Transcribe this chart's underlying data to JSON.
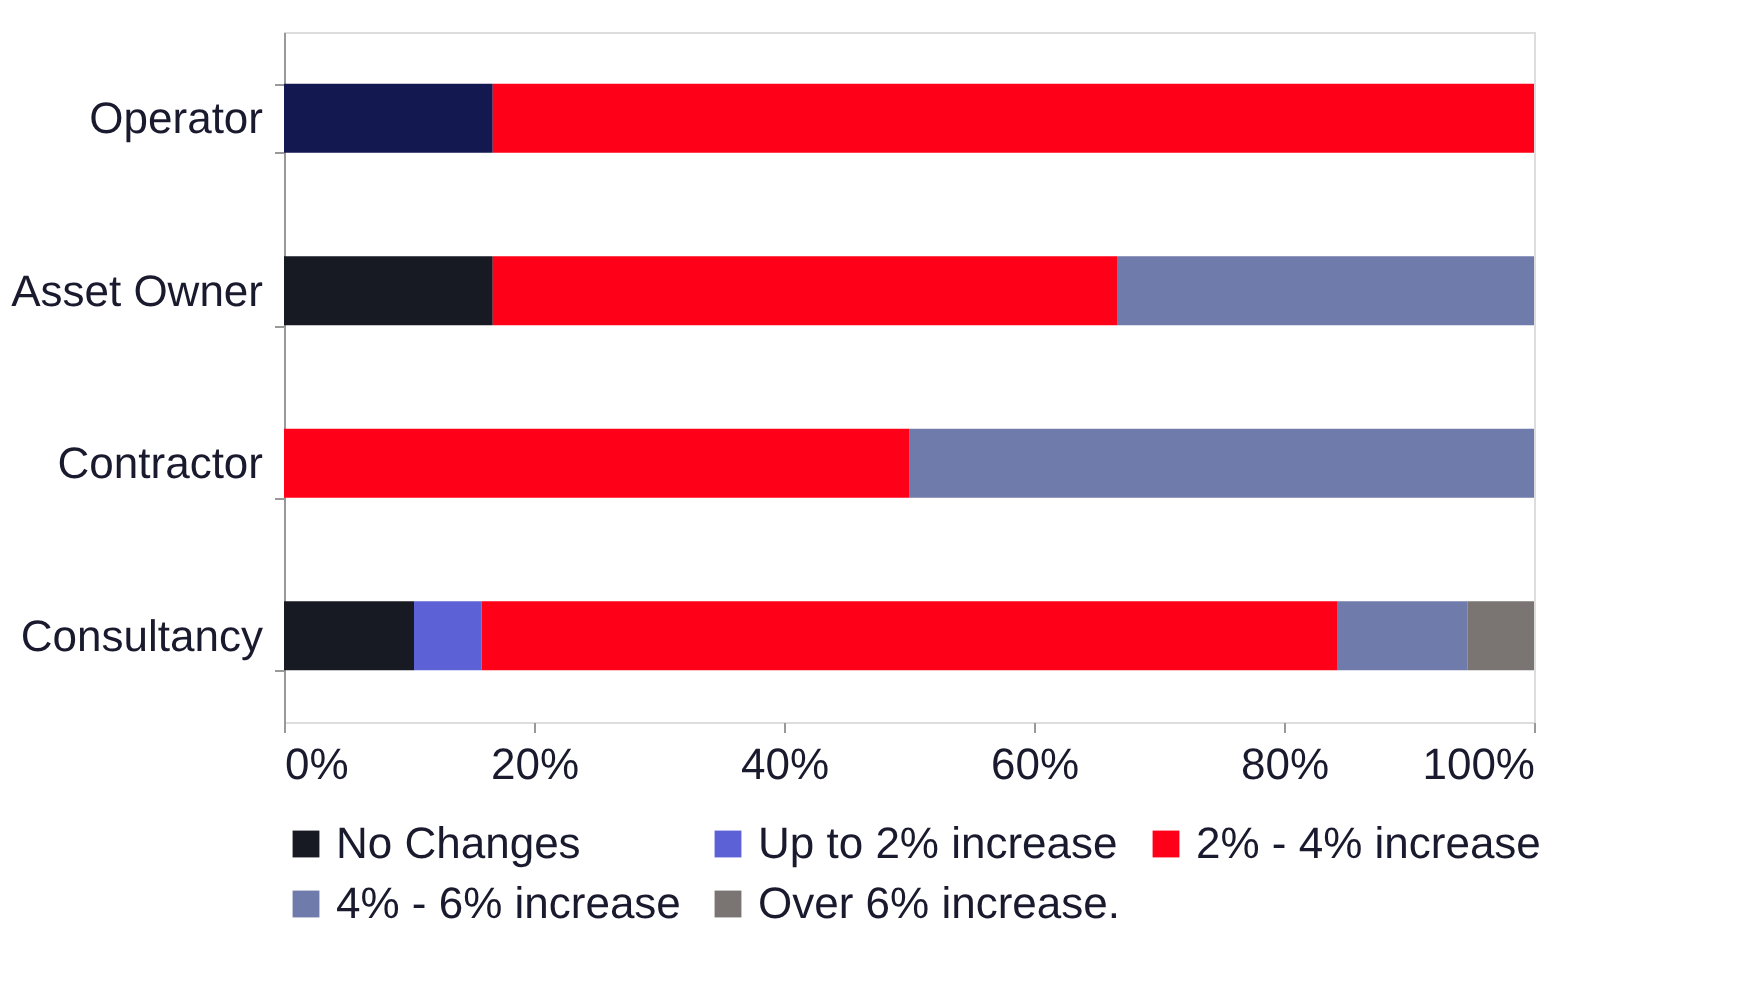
{
  "chart_data": {
    "type": "bar",
    "orientation": "horizontal",
    "stacked": true,
    "categories": [
      "Operator",
      "Asset Owner",
      "Contractor",
      "Consultancy"
    ],
    "series": [
      {
        "name": "No Changes",
        "color": "#171923",
        "colors": [
          "#141850",
          "#171923",
          null,
          "#171923"
        ],
        "values": [
          16.7,
          16.7,
          null,
          10.4
        ]
      },
      {
        "name": "Up to 2% increase",
        "color": "#5c62d6",
        "values": [
          null,
          null,
          null,
          5.4
        ]
      },
      {
        "name": "2% - 4% increase",
        "color": "#ff0019",
        "values": [
          83.3,
          50,
          50,
          68.5
        ]
      },
      {
        "name": "4% - 6% increase",
        "color": "#6f7bab",
        "values": [
          null,
          33.3,
          50,
          10.4
        ]
      },
      {
        "name": "Over 6% increase.",
        "color": "#7a7472",
        "values": [
          null,
          null,
          null,
          5.3
        ]
      }
    ],
    "xlim": [
      0,
      100
    ],
    "xticks": [
      {
        "value": 0,
        "label": "0%"
      },
      {
        "value": 20,
        "label": "20%"
      },
      {
        "value": 40,
        "label": "40%"
      },
      {
        "value": 60,
        "label": "60%"
      },
      {
        "value": 80,
        "label": "80%"
      },
      {
        "value": 100,
        "label": "100%"
      }
    ],
    "grid": false,
    "legend": "bottom"
  }
}
